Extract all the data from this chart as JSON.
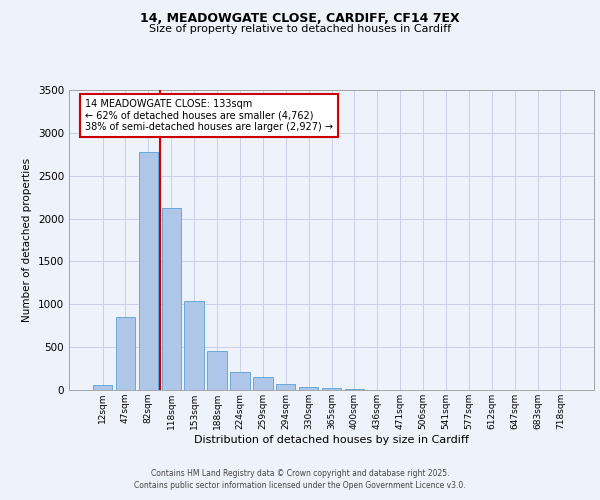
{
  "title_line1": "14, MEADOWGATE CLOSE, CARDIFF, CF14 7EX",
  "title_line2": "Size of property relative to detached houses in Cardiff",
  "xlabel": "Distribution of detached houses by size in Cardiff",
  "ylabel": "Number of detached properties",
  "categories": [
    "12sqm",
    "47sqm",
    "82sqm",
    "118sqm",
    "153sqm",
    "188sqm",
    "224sqm",
    "259sqm",
    "294sqm",
    "330sqm",
    "365sqm",
    "400sqm",
    "436sqm",
    "471sqm",
    "506sqm",
    "541sqm",
    "577sqm",
    "612sqm",
    "647sqm",
    "683sqm",
    "718sqm"
  ],
  "values": [
    55,
    850,
    2780,
    2120,
    1040,
    455,
    205,
    155,
    65,
    35,
    20,
    10,
    5,
    2,
    0,
    0,
    0,
    0,
    0,
    0,
    0
  ],
  "bar_color": "#aec6e8",
  "bar_edge_color": "#5a9fd4",
  "vline_x_index": 3,
  "vline_color": "#cc0000",
  "annotation_text": "14 MEADOWGATE CLOSE: 133sqm\n← 62% of detached houses are smaller (4,762)\n38% of semi-detached houses are larger (2,927) →",
  "annotation_box_color": "#ffffff",
  "annotation_box_edge": "#cc0000",
  "ylim": [
    0,
    3500
  ],
  "yticks": [
    0,
    500,
    1000,
    1500,
    2000,
    2500,
    3000,
    3500
  ],
  "background_color": "#eef2fa",
  "grid_color": "#c8d0e8",
  "footer_line1": "Contains HM Land Registry data © Crown copyright and database right 2025.",
  "footer_line2": "Contains public sector information licensed under the Open Government Licence v3.0."
}
